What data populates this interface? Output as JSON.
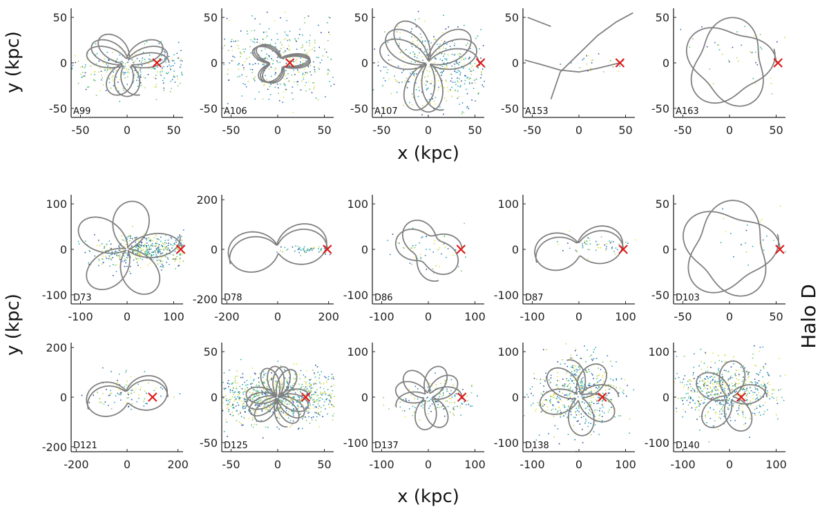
{
  "figure": {
    "xlabel_top": "x (kpc)",
    "xlabel_bottom": "x (kpc)",
    "ylabel_top": "y (kpc)",
    "ylabel_bottom": "y (kpc)",
    "halo_label": "Halo D"
  },
  "colors": {
    "orbit": "#808080",
    "marker": "#dd1a1a",
    "axis": "#222222",
    "particles": [
      "#2b4a9c",
      "#2b7bba",
      "#2fa6c4",
      "#29b5a8",
      "#7cc96a",
      "#c9d64a",
      "#f0e442"
    ]
  },
  "chart_data": [
    {
      "type": "scatter",
      "label": "A99",
      "xlim": [
        -60,
        60
      ],
      "ylim": [
        -60,
        60
      ],
      "xticks": [
        -50,
        0,
        50
      ],
      "yticks": [
        -50,
        0,
        50
      ],
      "marker": [
        32,
        0
      ],
      "orbit": {
        "kind": "rosette",
        "a": 45,
        "b": 6,
        "petals": 8,
        "ecc": 0.18
      },
      "particles": {
        "kind": "stream",
        "cx": 0,
        "cy": -5,
        "sx": 40,
        "sy": 12,
        "n": 320
      }
    },
    {
      "type": "scatter",
      "label": "A106",
      "xlim": [
        -60,
        60
      ],
      "ylim": [
        -60,
        60
      ],
      "xticks": [
        -50,
        0,
        50
      ],
      "yticks": [
        -50,
        0,
        50
      ],
      "marker": [
        13,
        0
      ],
      "orbit": {
        "kind": "rosette",
        "a": 35,
        "b": 9,
        "petals": 9,
        "ecc": 0.35
      },
      "particles": {
        "kind": "stream",
        "cx": 0,
        "cy": 2,
        "sx": 38,
        "sy": 22,
        "n": 420
      }
    },
    {
      "type": "scatter",
      "label": "A107",
      "xlim": [
        -60,
        60
      ],
      "ylim": [
        -60,
        60
      ],
      "xticks": [
        -50,
        0,
        50
      ],
      "yticks": [
        -50,
        0,
        50
      ],
      "marker": [
        56,
        0
      ],
      "orbit": {
        "kind": "rosette",
        "a": 54,
        "b": 3,
        "petals": 8,
        "ecc": 0.0
      },
      "particles": {
        "kind": "stream",
        "cx": 10,
        "cy": -5,
        "sx": 35,
        "sy": 25,
        "n": 420
      }
    },
    {
      "type": "scatter",
      "label": "A153",
      "xlim": [
        -60,
        60
      ],
      "ylim": [
        -60,
        60
      ],
      "xticks": [
        -50,
        0,
        50
      ],
      "yticks": [
        -50,
        0,
        50
      ],
      "marker": [
        44,
        0
      ],
      "orbit": {
        "kind": "arcs"
      },
      "particles": {
        "kind": "stream",
        "cx": 20,
        "cy": 0,
        "sx": 20,
        "sy": 6,
        "n": 25
      }
    },
    {
      "type": "scatter",
      "label": "A163",
      "xlim": [
        -60,
        60
      ],
      "ylim": [
        -60,
        60
      ],
      "xticks": [
        -50,
        0,
        50
      ],
      "yticks": [
        -50,
        0,
        50
      ],
      "marker": [
        52,
        0
      ],
      "orbit": {
        "kind": "rosette",
        "a": 50,
        "b": 32,
        "petals": 5,
        "ecc": 0.0
      },
      "particles": {
        "kind": "stream",
        "cx": 10,
        "cy": 5,
        "sx": 30,
        "sy": 20,
        "n": 40
      }
    },
    {
      "type": "scatter",
      "label": "D73",
      "xlim": [
        -120,
        120
      ],
      "ylim": [
        -120,
        120
      ],
      "xticks": [
        -100,
        0,
        100
      ],
      "yticks": [
        -100,
        0,
        100
      ],
      "marker": [
        115,
        0
      ],
      "orbit": {
        "kind": "rosette",
        "a": 118,
        "b": 4,
        "petals": 5,
        "ecc": 0.1
      },
      "particles": {
        "kind": "stream",
        "cx": 40,
        "cy": 0,
        "sx": 55,
        "sy": 18,
        "n": 480
      }
    },
    {
      "type": "scatter",
      "label": "D78",
      "xlim": [
        -220,
        220
      ],
      "ylim": [
        -220,
        220
      ],
      "xticks": [
        -200,
        0,
        200
      ],
      "yticks": [
        -200,
        0,
        200
      ],
      "marker": [
        195,
        0
      ],
      "orbit": {
        "kind": "rosette",
        "a": 195,
        "b": 18,
        "petals": 3,
        "ecc": 0.0
      },
      "particles": {
        "kind": "stream",
        "cx": 120,
        "cy": 0,
        "sx": 60,
        "sy": 10,
        "n": 60
      }
    },
    {
      "type": "scatter",
      "label": "D86",
      "xlim": [
        -120,
        120
      ],
      "ylim": [
        -120,
        120
      ],
      "xticks": [
        -100,
        0,
        100
      ],
      "yticks": [
        -100,
        0,
        100
      ],
      "marker": [
        70,
        0
      ],
      "orbit": {
        "kind": "rosette",
        "a": 72,
        "b": 30,
        "petals": 4,
        "ecc": 0.0
      },
      "particles": {
        "kind": "stream",
        "cx": 10,
        "cy": 0,
        "sx": 45,
        "sy": 30,
        "n": 60
      }
    },
    {
      "type": "scatter",
      "label": "D87",
      "xlim": [
        -120,
        120
      ],
      "ylim": [
        -120,
        120
      ],
      "xticks": [
        -100,
        0,
        100
      ],
      "yticks": [
        -100,
        0,
        100
      ],
      "marker": [
        95,
        0
      ],
      "orbit": {
        "kind": "rosette",
        "a": 95,
        "b": 15,
        "petals": 3,
        "ecc": 0.0
      },
      "particles": {
        "kind": "stream",
        "cx": 40,
        "cy": 10,
        "sx": 40,
        "sy": 10,
        "n": 60
      }
    },
    {
      "type": "scatter",
      "label": "D103",
      "xlim": [
        -60,
        60
      ],
      "ylim": [
        -60,
        60
      ],
      "xticks": [
        -50,
        0,
        50
      ],
      "yticks": [
        -50,
        0,
        50
      ],
      "marker": [
        54,
        0
      ],
      "orbit": {
        "kind": "rosette",
        "a": 54,
        "b": 34,
        "petals": 5,
        "ecc": 0.0
      },
      "particles": {
        "kind": "stream",
        "cx": 20,
        "cy": 15,
        "sx": 25,
        "sy": 15,
        "n": 25
      }
    },
    {
      "type": "scatter",
      "label": "D121",
      "xlim": [
        -220,
        220
      ],
      "ylim": [
        -220,
        220
      ],
      "xticks": [
        -200,
        0,
        200
      ],
      "yticks": [
        -200,
        0,
        200
      ],
      "marker": [
        100,
        0
      ],
      "orbit": {
        "kind": "rosette",
        "a": 160,
        "b": 25,
        "petals": 3,
        "ecc": 0.0
      },
      "particles": {
        "kind": "stream",
        "cx": 0,
        "cy": 20,
        "sx": 90,
        "sy": 35,
        "n": 90
      }
    },
    {
      "type": "scatter",
      "label": "D125",
      "xlim": [
        -60,
        60
      ],
      "ylim": [
        -60,
        60
      ],
      "xticks": [
        -50,
        0,
        50
      ],
      "yticks": [
        -50,
        0,
        50
      ],
      "marker": [
        30,
        0
      ],
      "orbit": {
        "kind": "rosette",
        "a": 34,
        "b": 2,
        "petals": 12,
        "ecc": 0.0
      },
      "particles": {
        "kind": "stream",
        "cx": 0,
        "cy": 0,
        "sx": 45,
        "sy": 14,
        "n": 1000
      }
    },
    {
      "type": "scatter",
      "label": "D137",
      "xlim": [
        -120,
        120
      ],
      "ylim": [
        -120,
        120
      ],
      "xticks": [
        -100,
        0,
        100
      ],
      "yticks": [
        -100,
        0,
        100
      ],
      "marker": [
        72,
        0
      ],
      "orbit": {
        "kind": "rosette",
        "a": 72,
        "b": 10,
        "petals": 7,
        "ecc": 0.0
      },
      "particles": {
        "kind": "stream",
        "cx": 20,
        "cy": 0,
        "sx": 40,
        "sy": 20,
        "n": 160
      }
    },
    {
      "type": "scatter",
      "label": "D138",
      "xlim": [
        -120,
        120
      ],
      "ylim": [
        -120,
        120
      ],
      "xticks": [
        -100,
        0,
        100
      ],
      "yticks": [
        -100,
        0,
        100
      ],
      "marker": [
        50,
        0
      ],
      "orbit": {
        "kind": "rosette",
        "a": 85,
        "b": 8,
        "petals": 6,
        "ecc": 0.0
      },
      "particles": {
        "kind": "stream",
        "cx": 0,
        "cy": 10,
        "sx": 50,
        "sy": 40,
        "n": 520
      }
    },
    {
      "type": "scatter",
      "label": "D140",
      "xlim": [
        -120,
        120
      ],
      "ylim": [
        -120,
        120
      ],
      "xticks": [
        -100,
        0,
        100
      ],
      "yticks": [
        -100,
        0,
        100
      ],
      "marker": [
        25,
        0
      ],
      "orbit": {
        "kind": "rosette",
        "a": 80,
        "b": 8,
        "petals": 5,
        "ecc": 0.0
      },
      "particles": {
        "kind": "stream",
        "cx": -10,
        "cy": 15,
        "sx": 60,
        "sy": 35,
        "n": 600
      }
    }
  ]
}
